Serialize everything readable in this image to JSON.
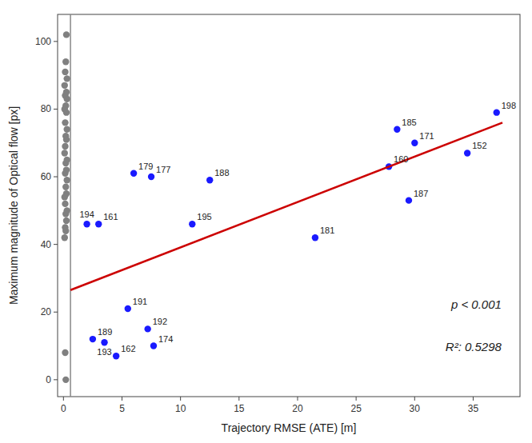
{
  "chart_data": {
    "type": "scatter",
    "xlabel": "Trajectory RMSE (ATE) [m]",
    "ylabel": "Maximum magnitude of Optical flow [px]",
    "xlim": [
      -0.5,
      39
    ],
    "ylim": [
      -5,
      108
    ],
    "xticks": [
      0,
      5,
      10,
      15,
      20,
      25,
      30,
      35
    ],
    "yticks": [
      0,
      20,
      40,
      60,
      80,
      100
    ],
    "grid": false,
    "vlines": [
      {
        "x": 0.6,
        "color": "#888888"
      }
    ],
    "series": [
      {
        "color": "#808080",
        "x": [
          0.25,
          0.2,
          0.15,
          0.3,
          0.1,
          0.25,
          0.15,
          0.3,
          0.2,
          0.1,
          0.25,
          0.15,
          0.3,
          0.2,
          0.25,
          0.15,
          0.1,
          0.3,
          0.2,
          0.25,
          0.15,
          0.3,
          0.2,
          0.25,
          0.1,
          0.15,
          0.3,
          0.2,
          0.25,
          0.15,
          0.2,
          0.1,
          0.15,
          0.2
        ],
        "values": [
          102,
          94,
          91,
          89,
          87,
          85,
          84,
          83,
          81,
          80,
          79,
          76,
          74,
          72,
          71,
          69,
          67,
          65,
          64,
          62,
          61,
          59,
          57,
          55,
          54,
          52,
          50,
          49,
          47,
          45,
          44,
          42,
          8,
          0
        ]
      },
      {
        "color": "#1a1aff",
        "x": [
          2.0,
          3.0,
          2.5,
          3.5,
          4.5,
          5.5,
          7.2,
          7.7,
          6.0,
          7.5,
          12.5,
          11.0,
          21.5,
          28.5,
          30.0,
          27.8,
          29.5,
          34.5,
          37.0
        ],
        "values": [
          46,
          46,
          12,
          11,
          7,
          21,
          15,
          10,
          61,
          60,
          59,
          46,
          42,
          74,
          70,
          63,
          53,
          67,
          79
        ],
        "labels": [
          "194",
          "161",
          "189",
          "193",
          "162",
          "191",
          "192",
          "174",
          "179",
          "177",
          "188",
          "195",
          "181",
          "185",
          "171",
          "160",
          "187",
          "152",
          "198"
        ]
      },
      {
        "type": "line",
        "color": "#cc0000",
        "x": [
          0.6,
          37.5
        ],
        "values": [
          26.5,
          76.0
        ]
      }
    ],
    "annotations": [
      "p < 0.001",
      "R²: 0.5298"
    ]
  }
}
